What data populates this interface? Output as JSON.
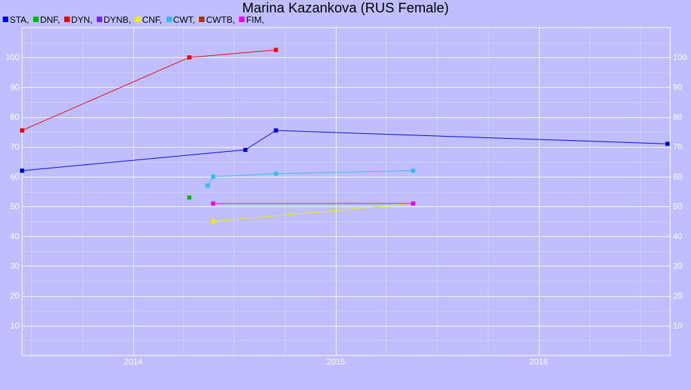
{
  "chart_data": {
    "type": "line",
    "title": "Marina Kazankova (RUS Female)",
    "xlabel": "",
    "ylabel": "",
    "x_axis": {
      "type": "date",
      "min": "2013-06-15",
      "max": "2016-08-25",
      "ticks": [
        "2014",
        "2015",
        "2016"
      ]
    },
    "y_axis": {
      "min": 0,
      "max": 110,
      "ticks": [
        10,
        20,
        30,
        40,
        50,
        60,
        70,
        80,
        90,
        100
      ]
    },
    "grid": true,
    "legend_position": "top-left",
    "series": [
      {
        "name": "STA",
        "color": "#0000dd",
        "points": [
          {
            "x": "2013-06-15",
            "y": 62
          },
          {
            "x": "2014-07-22",
            "y": 69
          },
          {
            "x": "2014-09-15",
            "y": 75.5
          },
          {
            "x": "2016-08-20",
            "y": 71
          }
        ]
      },
      {
        "name": "DNF",
        "color": "#00bb00",
        "points": [
          {
            "x": "2014-04-12",
            "y": 53
          }
        ]
      },
      {
        "name": "DYN",
        "color": "#ee0000",
        "points": [
          {
            "x": "2013-06-15",
            "y": 75.5
          },
          {
            "x": "2014-04-12",
            "y": 100
          },
          {
            "x": "2014-09-15",
            "y": 102.5
          }
        ]
      },
      {
        "name": "DYNB",
        "color": "#7722ee",
        "points": []
      },
      {
        "name": "CNF",
        "color": "#eeee00",
        "points": [
          {
            "x": "2014-05-25",
            "y": 45
          },
          {
            "x": "2015-05-20",
            "y": 51
          }
        ]
      },
      {
        "name": "CWT",
        "color": "#33bbee",
        "points": [
          {
            "x": "2014-05-15",
            "y": 57
          },
          {
            "x": "2014-05-25",
            "y": 60
          },
          {
            "x": "2014-09-15",
            "y": 61
          },
          {
            "x": "2015-05-20",
            "y": 62
          }
        ]
      },
      {
        "name": "CWTB",
        "color": "#aa3300",
        "points": []
      },
      {
        "name": "FIM",
        "color": "#ee00ee",
        "points": [
          {
            "x": "2014-05-25",
            "y": 51
          },
          {
            "x": "2015-05-20",
            "y": 51
          }
        ]
      }
    ]
  }
}
